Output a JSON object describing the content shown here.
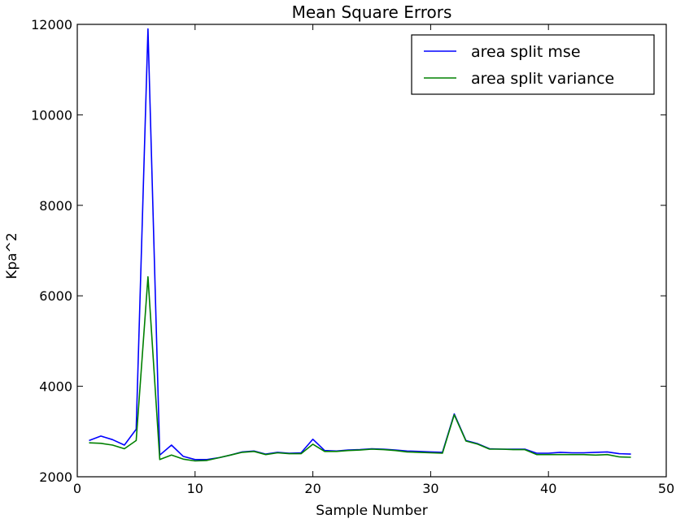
{
  "chart_data": {
    "type": "line",
    "title": "Mean Square Errors",
    "xlabel": "Sample Number",
    "ylabel": "Kpa^2",
    "xlim": [
      0,
      50
    ],
    "ylim": [
      2000,
      12000
    ],
    "xticks": [
      0,
      10,
      20,
      30,
      40,
      50
    ],
    "yticks": [
      2000,
      4000,
      6000,
      8000,
      10000,
      12000
    ],
    "grid": false,
    "legend_position": "top-right",
    "x": [
      1,
      2,
      3,
      4,
      5,
      6,
      7,
      8,
      9,
      10,
      11,
      12,
      13,
      14,
      15,
      16,
      17,
      18,
      19,
      20,
      21,
      22,
      23,
      24,
      25,
      26,
      27,
      28,
      29,
      30,
      31,
      32,
      33,
      34,
      35,
      36,
      37,
      38,
      39,
      40,
      41,
      42,
      43,
      44,
      45,
      46,
      47
    ],
    "series": [
      {
        "name": "area split mse",
        "color": "#0000ff",
        "values": [
          2800,
          2900,
          2820,
          2700,
          3050,
          11900,
          2480,
          2700,
          2450,
          2380,
          2380,
          2420,
          2480,
          2550,
          2570,
          2500,
          2540,
          2520,
          2530,
          2830,
          2580,
          2570,
          2590,
          2600,
          2620,
          2610,
          2590,
          2570,
          2560,
          2550,
          2540,
          3390,
          2800,
          2730,
          2620,
          2610,
          2610,
          2610,
          2520,
          2520,
          2540,
          2530,
          2530,
          2540,
          2550,
          2510,
          2500
        ]
      },
      {
        "name": "area split variance",
        "color": "#008000",
        "values": [
          2750,
          2740,
          2700,
          2620,
          2800,
          6420,
          2380,
          2480,
          2390,
          2350,
          2360,
          2420,
          2480,
          2540,
          2560,
          2490,
          2530,
          2510,
          2510,
          2720,
          2560,
          2560,
          2580,
          2590,
          2610,
          2600,
          2580,
          2550,
          2540,
          2530,
          2520,
          3370,
          2790,
          2720,
          2610,
          2610,
          2600,
          2600,
          2490,
          2490,
          2490,
          2490,
          2490,
          2480,
          2490,
          2440,
          2430
        ]
      }
    ]
  }
}
